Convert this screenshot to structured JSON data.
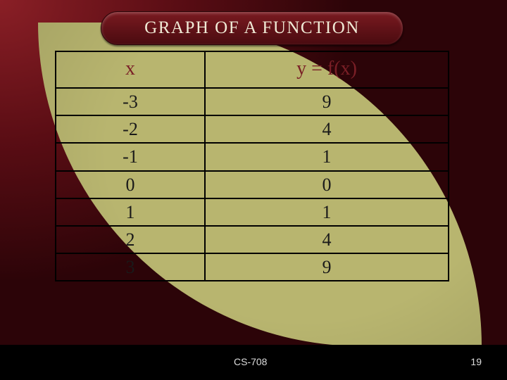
{
  "slide": {
    "title": "GRAPH OF A FUNCTION",
    "background": {
      "outer_gradient_from": "#8a1f26",
      "outer_gradient_to": "#2c0408",
      "leaf_color": "#b8b56f",
      "pill_gradient_from": "#7a1a20",
      "pill_gradient_to": "#4a0b10",
      "title_text_color": "#f0ead6",
      "header_text_color": "#7a1f26",
      "cell_text_color": "#1a1a1a",
      "border_color": "#000000"
    }
  },
  "table": {
    "type": "table",
    "columns": [
      {
        "key": "x",
        "label": "x",
        "width_pct": 38,
        "align": "center"
      },
      {
        "key": "y",
        "label": "y = f(x)",
        "width_pct": 62,
        "align": "center"
      }
    ],
    "header_fontsize_pt": 28,
    "cell_fontsize_pt": 26,
    "rows": [
      {
        "x": "-3",
        "y": "9"
      },
      {
        "x": "-2",
        "y": "4"
      },
      {
        "x": "-1",
        "y": "1"
      },
      {
        "x": "0",
        "y": "0"
      },
      {
        "x": "1",
        "y": "1"
      },
      {
        "x": "2",
        "y": "4"
      },
      {
        "x": "3",
        "y": "9"
      }
    ]
  },
  "footer": {
    "course": "CS-708",
    "page": "19"
  }
}
